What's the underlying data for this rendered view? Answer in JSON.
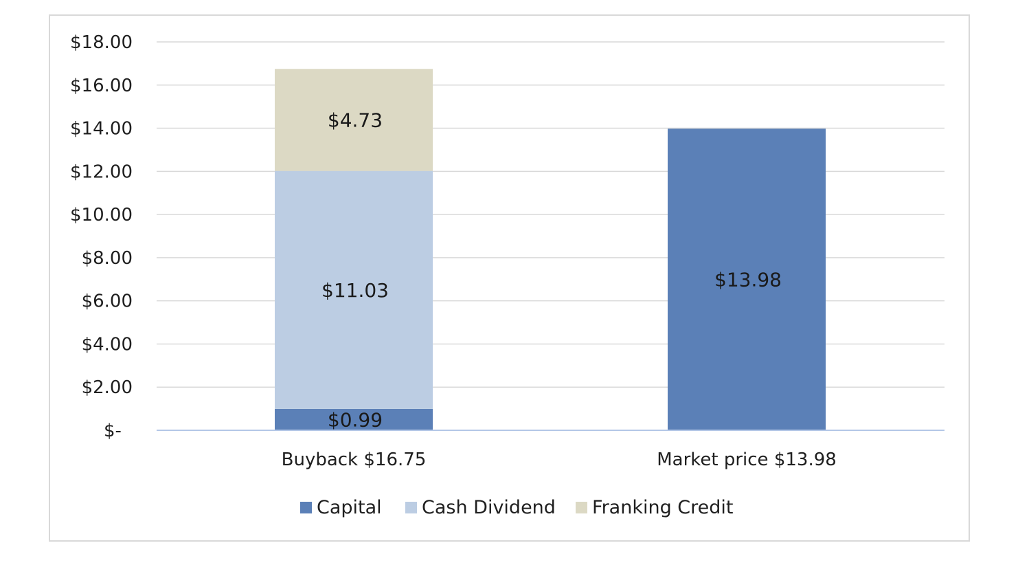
{
  "colors": {
    "capital": "#5b80b7",
    "cash_dividend": "#bccde3",
    "franking_credit": "#dcd9c4",
    "gridline": "#d9d9d9",
    "axis": "#b4c7e7"
  },
  "chart_data": {
    "type": "bar",
    "stacked": true,
    "categories": [
      "Buyback $16.75",
      "Market price $13.98"
    ],
    "series": [
      {
        "name": "Capital",
        "values": [
          0.99,
          13.98
        ],
        "labels": [
          "$0.99",
          "$13.98"
        ],
        "color_key": "capital"
      },
      {
        "name": "Cash Dividend",
        "values": [
          11.03,
          0
        ],
        "labels": [
          "$11.03",
          ""
        ],
        "color_key": "cash_dividend"
      },
      {
        "name": "Franking Credit",
        "values": [
          4.73,
          0
        ],
        "labels": [
          "$4.73",
          ""
        ],
        "color_key": "franking_credit"
      }
    ],
    "ylim": [
      0,
      18
    ],
    "yticks": [
      0,
      2,
      4,
      6,
      8,
      10,
      12,
      14,
      16,
      18
    ],
    "ytick_labels": [
      "$-",
      "$2.00",
      "$4.00",
      "$6.00",
      "$8.00",
      "$10.00",
      "$12.00",
      "$14.00",
      "$16.00",
      "$18.00"
    ],
    "grid": true,
    "legend": "bottom",
    "title": "",
    "xlabel": "",
    "ylabel": ""
  }
}
